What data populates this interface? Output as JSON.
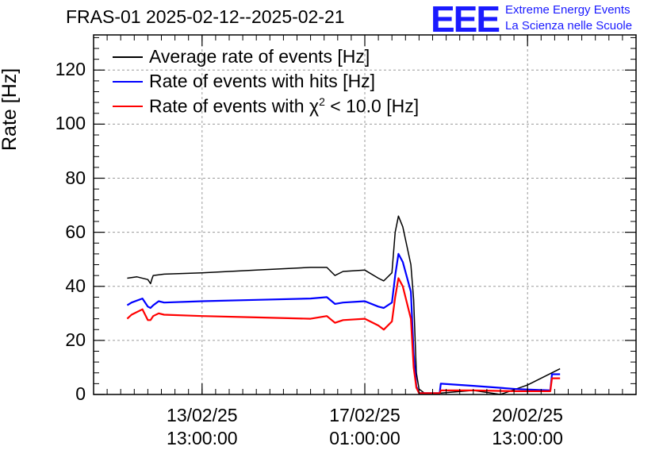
{
  "chart_data": {
    "type": "line",
    "title": "FRAS-01 2025-02-12--2025-02-21",
    "ylabel": "Rate [Hz]",
    "xlabel": "",
    "ylim": [
      0,
      133
    ],
    "yticks": [
      0,
      20,
      40,
      60,
      80,
      100,
      120
    ],
    "xlim_days": [
      0,
      10.0
    ],
    "xtick_labels": [
      {
        "day": 2.0,
        "date": "13/02/25",
        "time": "13:00:00"
      },
      {
        "day": 5.0,
        "date": "17/02/25",
        "time": "01:00:00"
      },
      {
        "day": 8.0,
        "date": "20/02/25",
        "time": "13:00:00"
      }
    ],
    "grid": true,
    "legend_position": "top-left",
    "series": [
      {
        "name": "Average rate of events [Hz]",
        "color": "#000000",
        "x": [
          0.62,
          0.8,
          1.0,
          1.05,
          1.08,
          1.1,
          1.3,
          2.0,
          3.0,
          4.0,
          4.3,
          4.45,
          4.6,
          5.0,
          5.25,
          5.35,
          5.5,
          5.56,
          5.62,
          5.7,
          5.85,
          5.9,
          5.95,
          6.0,
          6.1,
          6.4,
          7.0,
          7.5,
          8.0,
          8.6
        ],
        "y": [
          43,
          43.5,
          42.5,
          41,
          43,
          44,
          44.5,
          45,
          46,
          47,
          47,
          44,
          45.5,
          46,
          43,
          42,
          45,
          60,
          66,
          62,
          48,
          35,
          8,
          2,
          0.5,
          0.5,
          1.5,
          0,
          3.5,
          9.5
        ]
      },
      {
        "name": "Rate of events with hits [Hz]",
        "color": "#0000ff",
        "x": [
          0.62,
          0.7,
          0.9,
          1.0,
          1.05,
          1.1,
          1.2,
          1.3,
          2.0,
          3.0,
          4.0,
          4.3,
          4.45,
          4.6,
          5.0,
          5.25,
          5.35,
          5.5,
          5.56,
          5.62,
          5.7,
          5.85,
          5.9,
          5.95,
          6.0,
          6.1,
          6.38,
          6.4,
          7.0,
          7.8,
          8.42,
          8.45,
          8.6
        ],
        "y": [
          33,
          34,
          35.5,
          32.5,
          32,
          33,
          34.5,
          34,
          34.5,
          35,
          35.5,
          36,
          33.5,
          34,
          34.5,
          32.5,
          32,
          34,
          44,
          52,
          49,
          38,
          15,
          3,
          0.5,
          0.5,
          0.5,
          4,
          3.2,
          2,
          1.5,
          7.5,
          7.5
        ]
      },
      {
        "name": "Rate of events with χ² < 10.0 [Hz]",
        "color": "#ff0000",
        "x": [
          0.62,
          0.7,
          0.9,
          1.0,
          1.05,
          1.1,
          1.2,
          1.3,
          2.0,
          3.0,
          4.0,
          4.3,
          4.45,
          4.6,
          5.0,
          5.25,
          5.35,
          5.5,
          5.56,
          5.62,
          5.7,
          5.85,
          5.9,
          5.95,
          6.0,
          6.1,
          6.38,
          6.4,
          7.0,
          7.8,
          8.42,
          8.45,
          8.6
        ],
        "y": [
          28,
          29.5,
          31.5,
          27.5,
          27.5,
          29,
          30,
          29.5,
          29,
          28.5,
          28,
          29,
          26.5,
          27.5,
          28,
          25.5,
          24,
          27,
          36,
          43,
          40,
          28,
          10,
          2.5,
          0.5,
          0.5,
          0.5,
          1.5,
          1.5,
          1.2,
          1.2,
          6,
          6
        ]
      }
    ]
  },
  "header": {
    "logo_text": "EEE",
    "logo_line1": "Extreme Energy Events",
    "logo_line2": "La Scienza nelle Scuole"
  },
  "legend": {
    "avg_label": "Average rate of events [Hz]",
    "hits_label": "Rate of events with hits [Hz]",
    "chi_label_prefix": "Rate of events with ",
    "chi_symbol": "χ",
    "chi_sup": "2",
    "chi_label_suffix": " < 10.0 [Hz]"
  }
}
